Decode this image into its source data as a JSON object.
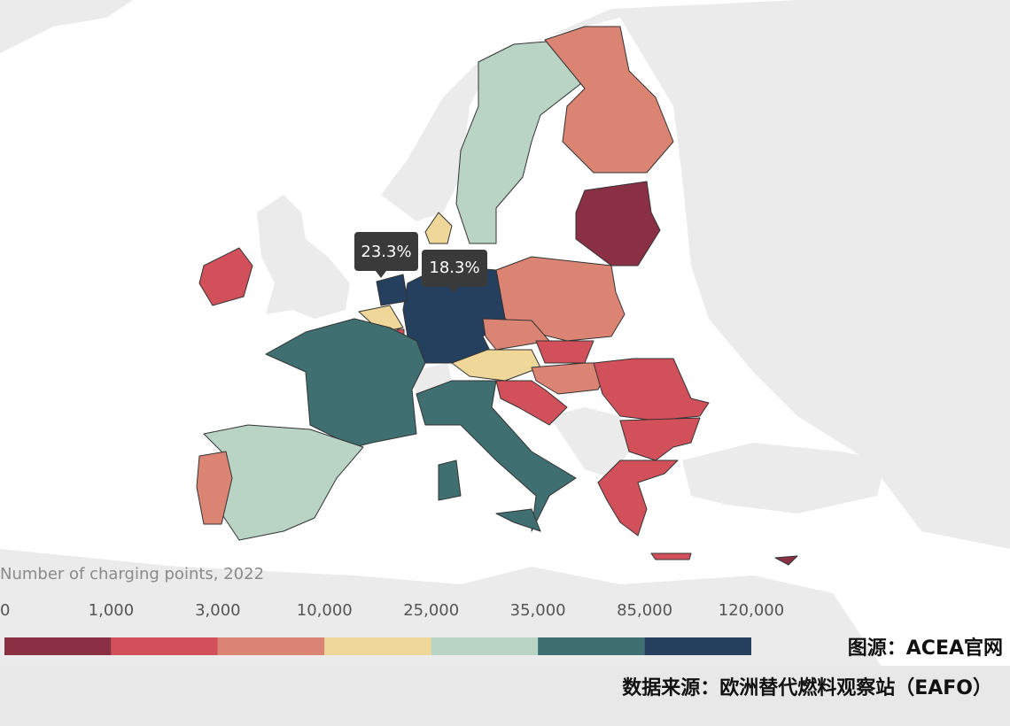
{
  "map": {
    "callouts": [
      "23.3%",
      "18.3%"
    ],
    "legend": {
      "title": "Number of charging points, 2022",
      "ticks": [
        0,
        {
          "value": 1000,
          "label": "1,000"
        },
        {
          "value": 3000,
          "label": "3,000"
        },
        {
          "value": 10000,
          "label": "10,000"
        },
        {
          "value": 25000,
          "label": "25,000"
        },
        {
          "value": 35000,
          "label": "35,000"
        },
        {
          "value": 85000,
          "label": "85,000"
        },
        {
          "value": 120000,
          "label": "120,000"
        }
      ],
      "colors": [
        "#8b2f45",
        "#d1505a",
        "#dc8473",
        "#efd79a",
        "#b9d4c5",
        "#3f6f70",
        "#253f5e"
      ]
    }
  },
  "source": {
    "image": "图源：ACEA官网",
    "data": "数据来源：欧洲替代燃料观察站（EAFO）"
  }
}
